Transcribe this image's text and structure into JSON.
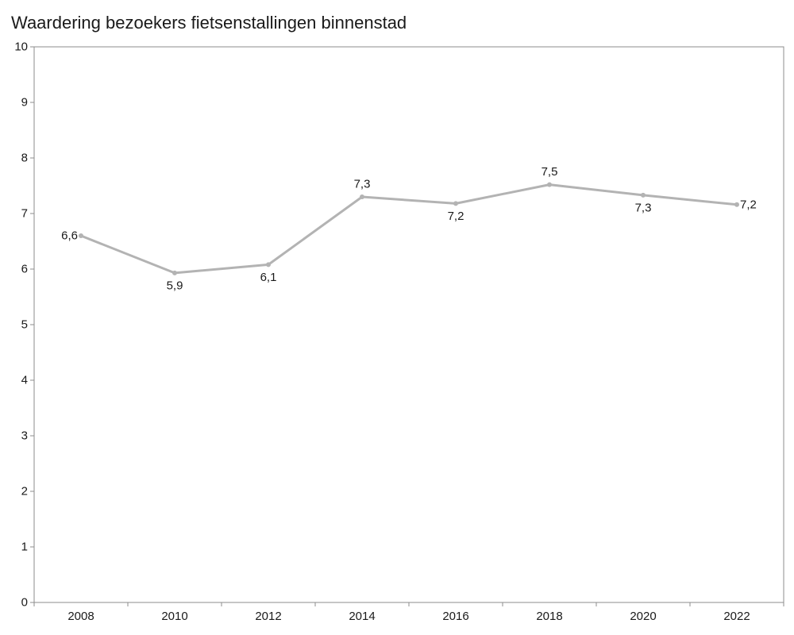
{
  "chart_data": {
    "type": "line",
    "title": "Waardering bezoekers fietsenstallingen binnenstad",
    "xlabel": "",
    "ylabel": "",
    "ylim": [
      0,
      10
    ],
    "yticks": [
      "0",
      "1",
      "2",
      "3",
      "4",
      "5",
      "6",
      "7",
      "8",
      "9",
      "10"
    ],
    "categories": [
      "2008",
      "2010",
      "2012",
      "2014",
      "2016",
      "2018",
      "2020",
      "2022"
    ],
    "series": [
      {
        "values": [
          6.6,
          5.93,
          6.08,
          7.3,
          7.18,
          7.52,
          7.33,
          7.16
        ],
        "labels": [
          "6,6",
          "5,9",
          "6,1",
          "7,3",
          "7,2",
          "7,5",
          "7,3",
          "7,2"
        ],
        "label_positions": [
          "left",
          "below",
          "below",
          "above",
          "below",
          "above",
          "below",
          "right"
        ],
        "color": "#b3b3b3"
      }
    ],
    "grid": false,
    "legend": "none"
  }
}
